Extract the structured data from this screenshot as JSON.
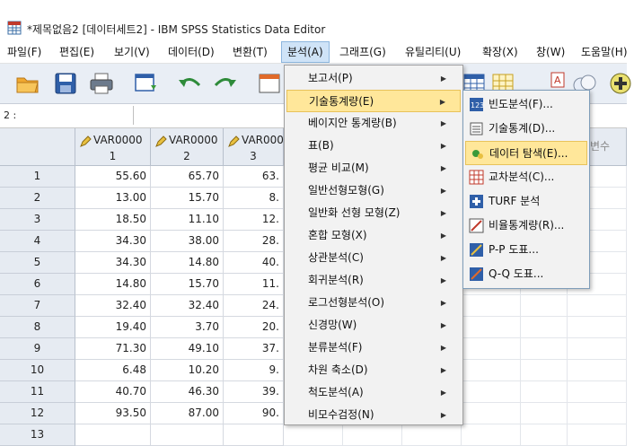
{
  "window": {
    "title": "*제목없음2 [데이터세트2] - IBM SPSS Statistics Data Editor"
  },
  "menubar": [
    {
      "id": "file",
      "label": "파일(F)"
    },
    {
      "id": "edit",
      "label": "편집(E)"
    },
    {
      "id": "view",
      "label": "보기(V)"
    },
    {
      "id": "data",
      "label": "데이터(D)"
    },
    {
      "id": "transform",
      "label": "변환(T)"
    },
    {
      "id": "analyze",
      "label": "분석(A)"
    },
    {
      "id": "graphs",
      "label": "그래프(G)"
    },
    {
      "id": "utilities",
      "label": "유틸리티(U)"
    },
    {
      "id": "extensions",
      "label": "확장(X)"
    },
    {
      "id": "window",
      "label": "창(W)"
    },
    {
      "id": "help",
      "label": "도움말(H)"
    }
  ],
  "cellbar": {
    "ref": "2 :",
    "value": ""
  },
  "grid": {
    "columns": [
      {
        "name": "VAR0000",
        "num": "1"
      },
      {
        "name": "VAR0000",
        "num": "2"
      },
      {
        "name": "VAR000",
        "num": "3"
      }
    ],
    "ghost_header": "변수",
    "rows": [
      {
        "n": "1",
        "v": [
          "55.60",
          "65.70",
          "63."
        ]
      },
      {
        "n": "2",
        "v": [
          "13.00",
          "15.70",
          "8."
        ]
      },
      {
        "n": "3",
        "v": [
          "18.50",
          "11.10",
          "12."
        ]
      },
      {
        "n": "4",
        "v": [
          "34.30",
          "38.00",
          "28."
        ]
      },
      {
        "n": "5",
        "v": [
          "34.30",
          "14.80",
          "40."
        ]
      },
      {
        "n": "6",
        "v": [
          "14.80",
          "15.70",
          "11."
        ]
      },
      {
        "n": "7",
        "v": [
          "32.40",
          "32.40",
          "24."
        ]
      },
      {
        "n": "8",
        "v": [
          "19.40",
          "3.70",
          "20."
        ]
      },
      {
        "n": "9",
        "v": [
          "71.30",
          "49.10",
          "37."
        ]
      },
      {
        "n": "10",
        "v": [
          "6.48",
          "10.20",
          "9."
        ]
      },
      {
        "n": "11",
        "v": [
          "40.70",
          "46.30",
          "39."
        ]
      },
      {
        "n": "12",
        "v": [
          "93.50",
          "87.00",
          "90."
        ]
      },
      {
        "n": "13",
        "v": [
          "",
          "",
          ""
        ]
      }
    ]
  },
  "analyze_menu": [
    {
      "id": "reports",
      "label": "보고서(P)"
    },
    {
      "id": "descriptive",
      "label": "기술통계량(E)"
    },
    {
      "id": "bayesian",
      "label": "베이지안 통계량(B)"
    },
    {
      "id": "tables",
      "label": "표(B)"
    },
    {
      "id": "compare-means",
      "label": "평균 비교(M)"
    },
    {
      "id": "glm",
      "label": "일반선형모형(G)"
    },
    {
      "id": "gzlm",
      "label": "일반화 선형 모형(Z)"
    },
    {
      "id": "mixed",
      "label": "혼합 모형(X)"
    },
    {
      "id": "correlate",
      "label": "상관분석(C)"
    },
    {
      "id": "regression",
      "label": "회귀분석(R)"
    },
    {
      "id": "loglinear",
      "label": "로그선형분석(O)"
    },
    {
      "id": "neural",
      "label": "신경망(W)"
    },
    {
      "id": "classify",
      "label": "분류분석(F)"
    },
    {
      "id": "dimension",
      "label": "차원 축소(D)"
    },
    {
      "id": "scale",
      "label": "척도분석(A)"
    },
    {
      "id": "nonparam",
      "label": "비모수검정(N)"
    }
  ],
  "descriptive_submenu": [
    {
      "id": "frequencies",
      "label": "빈도분석(F)...",
      "icon": "frequency-icon"
    },
    {
      "id": "descriptives",
      "label": "기술통계(D)...",
      "icon": "descriptives-icon"
    },
    {
      "id": "explore",
      "label": "데이터 탐색(E)...",
      "icon": "explore-icon"
    },
    {
      "id": "crosstabs",
      "label": "교차분석(C)...",
      "icon": "crosstabs-icon"
    },
    {
      "id": "turf",
      "label": "TURF 분석",
      "icon": "turf-icon"
    },
    {
      "id": "ratio",
      "label": "비율통계량(R)...",
      "icon": "ratio-icon"
    },
    {
      "id": "pp",
      "label": "P-P 도표...",
      "icon": "pp-plot-icon"
    },
    {
      "id": "qq",
      "label": "Q-Q 도표...",
      "icon": "qq-plot-icon"
    }
  ]
}
